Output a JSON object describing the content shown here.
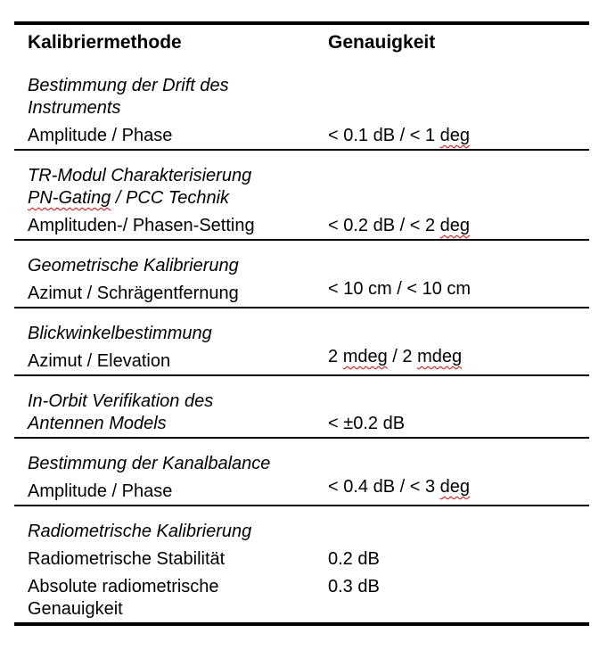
{
  "table": {
    "columns": [
      "Kalibriermethode",
      "Genauigkeit"
    ],
    "colors": {
      "text": "#000000",
      "rule": "#000000",
      "spellcheck_squiggle": "#e60000"
    },
    "sections": [
      {
        "method_lines": [
          [
            {
              "text": "Bestimmung der Drift des"
            }
          ],
          [
            {
              "text": "Instruments"
            }
          ]
        ],
        "rows": [
          {
            "label_lines": [
              [
                {
                  "text": "Amplitude / Phase"
                }
              ]
            ],
            "value_segs": [
              {
                "text": "< 0.1 dB / < 1 "
              },
              {
                "text": "deg",
                "misspelled": true
              }
            ]
          }
        ]
      },
      {
        "method_lines": [
          [
            {
              "text": "TR-Modul Charakterisierung"
            }
          ],
          [
            {
              "text": "PN-Gating",
              "misspelled": true
            },
            {
              "text": " / PCC Technik"
            }
          ]
        ],
        "rows": [
          {
            "label_lines": [
              [
                {
                  "text": "Amplituden-/ Phasen-Setting"
                }
              ]
            ],
            "value_segs": [
              {
                "text": "< 0.2 dB / < 2 "
              },
              {
                "text": "deg",
                "misspelled": true
              }
            ]
          }
        ]
      },
      {
        "method_lines": [
          [
            {
              "text": "Geometrische Kalibrierung"
            }
          ]
        ],
        "rows": [
          {
            "label_lines": [
              [
                {
                  "text": "Azimut / Schrägentfernung"
                }
              ]
            ],
            "value_segs": [
              {
                "text": "< 10 cm / < 10 cm"
              }
            ],
            "value_raised": true
          }
        ]
      },
      {
        "method_lines": [
          [
            {
              "text": "Blickwinkelbestimmung"
            }
          ]
        ],
        "rows": [
          {
            "label_lines": [
              [
                {
                  "text": "Azimut / Elevation"
                }
              ]
            ],
            "value_segs": [
              {
                "text": "2 "
              },
              {
                "text": "mdeg",
                "misspelled": true
              },
              {
                "text": " / 2 "
              },
              {
                "text": "mdeg",
                "misspelled": true
              }
            ],
            "value_raised": true
          }
        ]
      },
      {
        "method_lines": [
          [
            {
              "text": "In-Orbit Verifikation des"
            }
          ],
          [
            {
              "text": "Antennen Models"
            }
          ]
        ],
        "heading_value_segs": [
          {
            "text": "< ±0.2 dB"
          }
        ],
        "rows": []
      },
      {
        "method_lines": [
          [
            {
              "text": "Bestimmung der Kanalbalance"
            }
          ]
        ],
        "rows": [
          {
            "label_lines": [
              [
                {
                  "text": "Amplitude / Phase"
                }
              ]
            ],
            "value_segs": [
              {
                "text": "< 0.4 dB / < 3 "
              },
              {
                "text": "deg",
                "misspelled": true
              }
            ],
            "value_raised": true
          }
        ]
      },
      {
        "method_lines": [
          [
            {
              "text": "Radiometrische Kalibrierung"
            }
          ]
        ],
        "rows": [
          {
            "label_lines": [
              [
                {
                  "text": "Radiometrische Stabilität"
                }
              ]
            ],
            "value_segs": [
              {
                "text": "0.2 dB"
              }
            ]
          },
          {
            "label_lines": [
              [
                {
                  "text": "Absolute radiometrische"
                }
              ],
              [
                {
                  "text": "Genauigkeit"
                }
              ]
            ],
            "value_segs": [
              {
                "text": "0.3 dB"
              }
            ]
          }
        ]
      }
    ]
  }
}
